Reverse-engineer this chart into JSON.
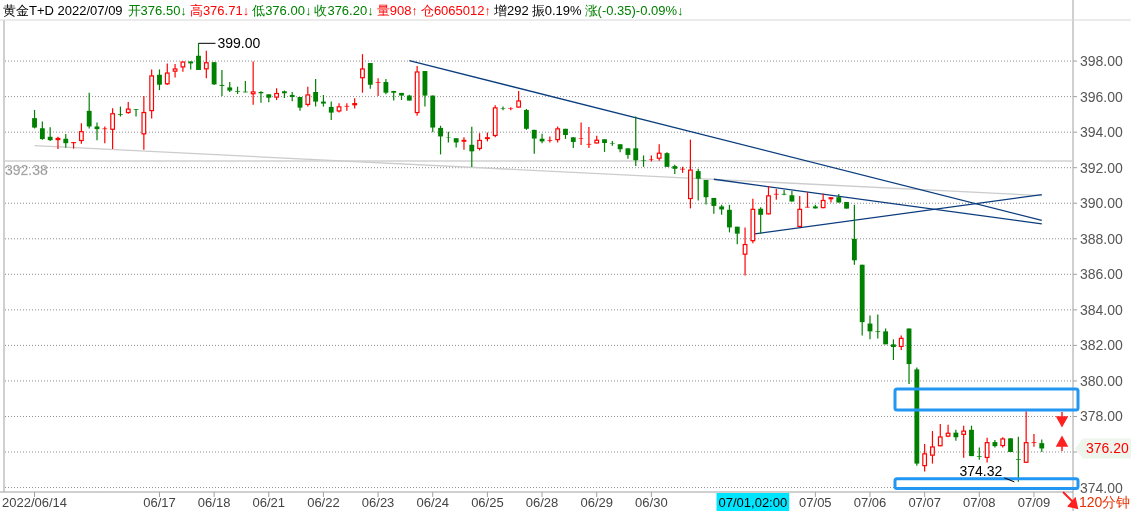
{
  "chart_data": {
    "type": "candlestick",
    "title": "黄金T+D 2022/07/09",
    "categories": [
      "2022/06/14",
      null,
      null,
      null,
      null,
      null,
      null,
      null,
      null,
      null,
      null,
      null,
      null,
      null,
      null,
      null,
      "06/17",
      null,
      null,
      null,
      null,
      null,
      null,
      "06/18",
      null,
      null,
      null,
      null,
      null,
      null,
      "06/21",
      null,
      null,
      null,
      null,
      null,
      null,
      "06/22",
      null,
      null,
      null,
      null,
      null,
      null,
      "06/23",
      null,
      null,
      null,
      null,
      null,
      null,
      "06/24",
      null,
      null,
      null,
      null,
      null,
      null,
      "06/25",
      null,
      null,
      null,
      null,
      null,
      null,
      "06/28",
      null,
      null,
      null,
      null,
      null,
      null,
      "06/29",
      null,
      null,
      null,
      null,
      null,
      null,
      "06/30",
      null,
      null,
      null,
      null,
      null,
      null,
      null,
      null,
      null,
      null,
      null,
      null,
      null,
      null,
      null,
      null,
      null,
      null,
      null,
      null,
      "07/05",
      null,
      null,
      null,
      null,
      null,
      null,
      "07/06",
      null,
      null,
      null,
      null,
      null,
      null,
      "07/07",
      null,
      null,
      null,
      null,
      null,
      null,
      "07/08",
      null,
      null,
      null,
      null,
      null,
      null,
      "07/09",
      null
    ],
    "ohlc": [
      [
        394.79,
        395.25,
        394.21,
        394.26
      ],
      [
        394.22,
        394.6,
        393.57,
        393.61
      ],
      [
        393.74,
        394.28,
        393.51,
        393.55
      ],
      [
        393.55,
        393.74,
        393.05,
        393.68
      ],
      [
        393.63,
        393.89,
        393.12,
        393.38
      ],
      [
        393.38,
        393.44,
        393.07,
        393.44
      ],
      [
        393.5,
        394.5,
        393.35,
        394.06
      ],
      [
        395.2,
        396.22,
        394.21,
        394.32
      ],
      [
        394.32,
        394.54,
        393.55,
        394.17
      ],
      [
        394.17,
        394.32,
        393.38,
        394.21
      ],
      [
        394.13,
        395.35,
        393.05,
        395.07
      ],
      [
        395.01,
        395.44,
        394.88,
        394.97
      ],
      [
        395.07,
        395.7,
        395.03,
        395.33
      ],
      [
        395.3,
        395.3,
        394.88,
        395.26
      ],
      [
        393.87,
        396.04,
        393.01,
        395.14
      ],
      [
        395.18,
        397.53,
        394.77,
        397.2
      ],
      [
        397.23,
        397.53,
        396.37,
        396.67
      ],
      [
        396.69,
        397.87,
        396.65,
        397.36
      ],
      [
        397.4,
        397.83,
        397.07,
        397.59
      ],
      [
        397.64,
        397.98,
        397.4,
        397.98
      ],
      [
        397.98,
        397.98,
        397.53,
        397.87
      ],
      [
        398.3,
        399.0,
        397.5,
        397.5
      ],
      [
        397.53,
        398.58,
        397.03,
        397.94
      ],
      [
        397.94,
        397.94,
        396.65,
        396.69
      ],
      [
        396.65,
        397.5,
        396.04,
        396.6
      ],
      [
        396.52,
        396.82,
        396.26,
        396.34
      ],
      [
        396.32,
        396.56,
        396.15,
        396.28
      ],
      [
        396.28,
        396.88,
        396.24,
        396.24
      ],
      [
        396.13,
        397.98,
        395.55,
        396.3
      ],
      [
        396.26,
        396.3,
        395.66,
        396.19
      ],
      [
        396.13,
        396.13,
        395.68,
        395.94
      ],
      [
        395.94,
        396.47,
        395.81,
        396.21
      ],
      [
        396.3,
        396.34,
        395.93,
        396.19
      ],
      [
        396.09,
        396.26,
        395.74,
        395.98
      ],
      [
        395.98,
        395.98,
        395.21,
        395.38
      ],
      [
        395.53,
        396.56,
        395.44,
        396.13
      ],
      [
        396.26,
        396.99,
        395.44,
        395.72
      ],
      [
        395.72,
        396.09,
        395.44,
        395.61
      ],
      [
        395.42,
        395.72,
        394.69,
        395.1
      ],
      [
        395.16,
        395.63,
        395.1,
        395.46
      ],
      [
        395.44,
        395.63,
        395.21,
        395.48
      ],
      [
        395.51,
        395.91,
        395.33,
        395.64
      ],
      [
        397.03,
        398.39,
        396.22,
        397.59
      ],
      [
        397.89,
        397.89,
        396.45,
        396.67
      ],
      [
        396.78,
        397.03,
        396.04,
        396.82
      ],
      [
        396.82,
        396.99,
        396.13,
        396.22
      ],
      [
        396.32,
        396.32,
        395.78,
        396.22
      ],
      [
        396.21,
        396.21,
        395.81,
        396.06
      ],
      [
        396.06,
        396.11,
        395.78,
        395.78
      ],
      [
        395.07,
        397.72,
        394.92,
        397.42
      ],
      [
        397.44,
        397.44,
        395.44,
        396.06
      ],
      [
        396.06,
        396.06,
        394.0,
        394.26
      ],
      [
        394.24,
        394.36,
        392.75,
        393.76
      ],
      [
        393.72,
        394.02,
        393.42,
        393.7
      ],
      [
        393.66,
        393.66,
        393.14,
        393.42
      ],
      [
        393.46,
        393.72,
        393.01,
        393.57
      ],
      [
        393.29,
        394.3,
        392.04,
        392.92
      ],
      [
        393.05,
        393.94,
        392.97,
        393.57
      ],
      [
        393.61,
        393.98,
        393.48,
        393.72
      ],
      [
        393.78,
        395.51,
        393.72,
        395.4
      ],
      [
        395.36,
        395.44,
        395.23,
        395.33
      ],
      [
        395.33,
        395.4,
        395.23,
        395.36
      ],
      [
        395.38,
        396.32,
        395.38,
        395.79
      ],
      [
        395.25,
        395.31,
        394.13,
        394.19
      ],
      [
        394.13,
        394.13,
        392.79,
        393.64
      ],
      [
        393.63,
        393.91,
        393.38,
        393.48
      ],
      [
        393.51,
        393.76,
        393.42,
        393.55
      ],
      [
        393.55,
        394.32,
        393.42,
        394.22
      ],
      [
        394.19,
        394.19,
        393.62,
        393.84
      ],
      [
        393.71,
        393.71,
        393.11,
        393.45
      ],
      [
        393.62,
        394.55,
        393.28,
        393.65
      ],
      [
        393.3,
        394.29,
        393.11,
        393.34
      ],
      [
        393.36,
        393.8,
        393.36,
        393.58
      ],
      [
        393.6,
        393.6,
        392.89,
        393.39
      ],
      [
        393.39,
        393.5,
        393.23,
        393.36
      ],
      [
        393.32,
        393.32,
        392.87,
        393.04
      ],
      [
        393.09,
        393.09,
        392.5,
        392.72
      ],
      [
        393.09,
        394.88,
        392.09,
        392.42
      ],
      [
        392.42,
        392.69,
        392.05,
        392.39
      ],
      [
        392.44,
        392.69,
        392.35,
        392.47
      ],
      [
        392.5,
        393.32,
        392.39,
        392.85
      ],
      [
        392.82,
        392.87,
        392.05,
        392.05
      ],
      [
        392.09,
        392.16,
        391.64,
        391.94
      ],
      [
        391.9,
        392.05,
        391.72,
        391.94
      ],
      [
        390.23,
        393.58,
        389.71,
        391.9
      ],
      [
        391.81,
        391.94,
        390.15,
        391.38
      ],
      [
        391.31,
        391.31,
        389.93,
        390.34
      ],
      [
        390.3,
        390.3,
        389.41,
        389.85
      ],
      [
        389.82,
        389.91,
        389.35,
        389.65
      ],
      [
        389.63,
        389.91,
        388.36,
        388.64
      ],
      [
        388.68,
        388.68,
        387.69,
        388.29
      ],
      [
        387.1,
        388.64,
        385.94,
        387.71
      ],
      [
        387.86,
        390.25,
        387.75,
        389.69
      ],
      [
        389.69,
        389.78,
        388.29,
        389.35
      ],
      [
        389.37,
        390.97,
        389.37,
        390.45
      ],
      [
        390.49,
        390.8,
        390.19,
        390.53
      ],
      [
        390.53,
        390.75,
        390.45,
        390.49
      ],
      [
        390.45,
        390.69,
        390.1,
        390.1
      ],
      [
        388.66,
        390.41,
        388.66,
        389.69
      ],
      [
        389.76,
        390.62,
        389.76,
        389.8
      ],
      [
        389.82,
        389.91,
        389.71,
        389.71
      ],
      [
        389.72,
        390.54,
        389.72,
        390.19
      ],
      [
        390.22,
        390.34,
        390.04,
        390.34
      ],
      [
        390.34,
        390.52,
        390.04,
        390.04
      ],
      [
        390.07,
        390.07,
        389.7,
        389.7
      ],
      [
        388.0,
        389.91,
        386.54,
        386.79
      ],
      [
        386.54,
        386.54,
        382.56,
        383.31
      ],
      [
        383.23,
        383.68,
        382.34,
        382.79
      ],
      [
        382.79,
        383.74,
        382.39,
        382.75
      ],
      [
        382.79,
        382.95,
        382.06,
        382.06
      ],
      [
        382.06,
        382.34,
        381.18,
        381.91
      ],
      [
        381.91,
        382.56,
        381.74,
        382.43
      ],
      [
        382.95,
        382.95,
        379.83,
        380.95
      ],
      [
        380.65,
        380.75,
        375.23,
        375.35
      ],
      [
        375.2,
        376.45,
        374.9,
        375.93
      ],
      [
        375.79,
        377.18,
        375.35,
        376.32
      ],
      [
        376.32,
        377.57,
        376.32,
        376.88
      ],
      [
        376.86,
        377.53,
        376.83,
        377.09
      ],
      [
        377.09,
        377.25,
        376.63,
        376.83
      ],
      [
        376.96,
        377.48,
        375.68,
        377.21
      ],
      [
        377.25,
        377.48,
        375.77,
        375.77
      ],
      [
        375.76,
        376.25,
        375.56,
        375.72
      ],
      [
        375.66,
        376.81,
        375.41,
        376.56
      ],
      [
        376.56,
        376.67,
        376.25,
        376.33
      ],
      [
        376.33,
        376.83,
        376.25,
        376.77
      ],
      [
        376.77,
        376.77,
        376.0,
        376.0
      ],
      [
        375.6,
        376.86,
        374.32,
        375.56
      ],
      [
        375.39,
        378.3,
        375.39,
        376.56
      ],
      [
        376.52,
        377.02,
        376.29,
        376.56
      ],
      [
        376.5,
        376.71,
        376.0,
        376.2
      ]
    ],
    "series": [
      {
        "type": "line",
        "color": "#0b3c7d",
        "values": [
          null,
          null,
          null,
          null,
          null,
          null,
          null,
          null,
          null,
          null,
          null,
          null,
          null,
          null,
          null,
          null,
          null,
          null,
          null,
          null,
          null,
          null,
          null,
          null,
          null,
          null,
          null,
          null,
          null,
          null,
          null,
          null,
          null,
          null,
          null,
          null,
          null,
          null,
          null,
          null,
          null,
          null,
          null,
          null,
          null,
          null,
          null,
          null,
          398.03,
          null,
          null,
          null,
          null,
          null,
          null,
          null,
          null,
          null,
          null,
          null,
          null,
          null,
          null,
          null,
          null,
          null,
          null,
          null,
          null,
          null,
          null,
          null,
          null,
          null,
          null,
          null,
          null,
          null,
          null,
          null,
          null,
          null,
          null,
          null,
          null,
          null,
          null,
          null,
          null,
          null,
          null,
          null,
          null,
          null,
          null,
          null,
          null,
          null,
          null,
          null,
          null,
          null,
          null,
          null,
          null,
          null,
          null,
          null,
          null,
          null,
          null,
          null,
          null,
          null,
          null,
          null,
          null,
          null,
          null,
          null,
          null,
          null,
          null,
          null,
          null,
          null,
          null,
          null,
          null,
          389.04
        ]
      },
      {
        "type": "line",
        "color": "#0b3c7d",
        "values": [
          null,
          null,
          null,
          null,
          null,
          null,
          null,
          null,
          null,
          null,
          null,
          null,
          null,
          null,
          null,
          null,
          null,
          null,
          null,
          null,
          null,
          null,
          null,
          null,
          null,
          null,
          null,
          null,
          null,
          null,
          null,
          null,
          null,
          null,
          null,
          null,
          null,
          null,
          null,
          null,
          null,
          null,
          null,
          null,
          null,
          null,
          null,
          null,
          null,
          null,
          null,
          null,
          null,
          null,
          null,
          null,
          null,
          null,
          null,
          null,
          null,
          null,
          null,
          null,
          null,
          null,
          null,
          null,
          null,
          null,
          null,
          null,
          null,
          null,
          null,
          null,
          null,
          null,
          null,
          null,
          null,
          null,
          null,
          null,
          null,
          null,
          null,
          391.35,
          null,
          null,
          null,
          null,
          null,
          null,
          null,
          null,
          null,
          null,
          null,
          null,
          null,
          null,
          null,
          null,
          null,
          null,
          null,
          null,
          null,
          null,
          null,
          null,
          null,
          null,
          null,
          null,
          null,
          null,
          null,
          null,
          null,
          null,
          null,
          null,
          null,
          null,
          null,
          null,
          null,
          388.84
        ]
      },
      {
        "type": "line",
        "color": "#0b3c7d",
        "values": [
          null,
          null,
          null,
          null,
          null,
          null,
          null,
          null,
          null,
          null,
          null,
          null,
          null,
          null,
          null,
          null,
          null,
          null,
          null,
          null,
          null,
          null,
          null,
          null,
          null,
          null,
          null,
          null,
          null,
          null,
          null,
          null,
          null,
          null,
          null,
          null,
          null,
          null,
          null,
          null,
          null,
          null,
          null,
          null,
          null,
          null,
          null,
          null,
          null,
          null,
          null,
          null,
          null,
          null,
          null,
          null,
          null,
          null,
          null,
          null,
          null,
          null,
          null,
          null,
          null,
          null,
          null,
          null,
          null,
          null,
          null,
          null,
          null,
          null,
          null,
          null,
          null,
          null,
          null,
          null,
          null,
          null,
          null,
          null,
          null,
          null,
          null,
          null,
          null,
          null,
          null,
          null,
          388.26,
          null,
          null,
          null,
          null,
          null,
          null,
          null,
          null,
          null,
          null,
          null,
          null,
          null,
          null,
          null,
          null,
          null,
          null,
          null,
          null,
          null,
          null,
          null,
          null,
          null,
          null,
          null,
          null,
          null,
          null,
          null,
          null,
          null,
          null,
          null,
          null,
          390.49
        ]
      },
      {
        "type": "line",
        "color": "#cccccc",
        "values": [
          393.24,
          null,
          null,
          null,
          null,
          null,
          null,
          null,
          null,
          null,
          null,
          null,
          null,
          null,
          null,
          null,
          null,
          null,
          null,
          null,
          null,
          null,
          null,
          null,
          null,
          null,
          null,
          null,
          null,
          null,
          null,
          null,
          null,
          null,
          null,
          null,
          null,
          null,
          null,
          null,
          null,
          null,
          null,
          null,
          null,
          null,
          null,
          null,
          null,
          null,
          null,
          null,
          null,
          null,
          null,
          null,
          null,
          null,
          null,
          null,
          null,
          null,
          null,
          null,
          null,
          null,
          null,
          null,
          null,
          null,
          null,
          null,
          null,
          null,
          null,
          null,
          null,
          null,
          null,
          null,
          null,
          null,
          null,
          null,
          null,
          null,
          null,
          null,
          null,
          null,
          null,
          null,
          null,
          null,
          null,
          null,
          null,
          null,
          null,
          null,
          null,
          null,
          null,
          null,
          null,
          null,
          null,
          null,
          null,
          null,
          null,
          null,
          null,
          null,
          null,
          null,
          null,
          null,
          null,
          null,
          null,
          null,
          null,
          null,
          null,
          null,
          null,
          null,
          null,
          390.43
        ]
      }
    ],
    "ylim": [
      373.75,
      400.2
    ],
    "yticks": [
      {
        "value": 374,
        "label": "374.00"
      },
      {
        "value": 376,
        "label": null
      },
      {
        "value": 378,
        "label": "378.00"
      },
      {
        "value": 380,
        "label": "380.00"
      },
      {
        "value": 382,
        "label": "382.00"
      },
      {
        "value": 384,
        "label": "384.00"
      },
      {
        "value": 386,
        "label": "386.00"
      },
      {
        "value": 388,
        "label": "388.00"
      },
      {
        "value": 390,
        "label": "390.00"
      },
      {
        "value": 392,
        "label": "392.00"
      },
      {
        "value": 394,
        "label": "394.00"
      },
      {
        "value": 396,
        "label": "396.00"
      },
      {
        "value": 398,
        "label": "398.00"
      }
    ],
    "grid": "y",
    "ref_lines": [
      {
        "axis": "y",
        "value": 392.38,
        "label": "392.38",
        "color": "#d0d0d0"
      }
    ],
    "annotations": [
      "开376.50↓",
      "高376.71↓",
      "低376.00↓",
      "收376.20↓",
      "量908↑",
      "仓6065012↑",
      "增292",
      "振0.19%",
      "涨(-0.35)-0.09%↓",
      "399.00",
      "374.32",
      "376.20",
      "07/01,02:00",
      "120分钟"
    ]
  }
}
